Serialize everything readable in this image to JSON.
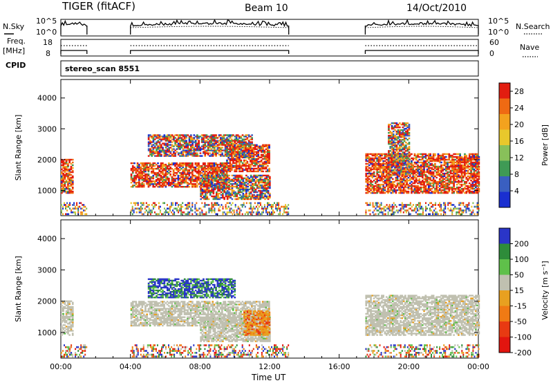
{
  "header": {
    "station": "TIGER (fitACF)",
    "beam": "Beam 10",
    "date": "14/Oct/2010"
  },
  "side_labels": {
    "nsky": "N.Sky",
    "nsearch": "N.Search",
    "freq": "Freq.",
    "freq_unit": "[MHz]",
    "nave": "Nave",
    "cpid": "CPID",
    "cpid_value": "stereo_scan 8551"
  },
  "axis_text": {
    "nsky_ticks": [
      "10^5",
      "10^0"
    ],
    "nsearch_ticks": [
      "10^5",
      "10^0"
    ],
    "freq_ticks": [
      "18",
      "8"
    ],
    "nave_ticks": [
      "60",
      "0"
    ]
  },
  "colors": {
    "power_scale": [
      "#1a2fd0",
      "#3a5fc0",
      "#3f9a55",
      "#88c05a",
      "#e8c82c",
      "#f3a21e",
      "#ef6a13",
      "#e21d10"
    ],
    "velocity_scale": [
      "#2a35c8",
      "#2e8c3a",
      "#5fc04a",
      "#c0c0b0",
      "#e8a020",
      "#f07a14",
      "#e83a12",
      "#e2150f"
    ]
  },
  "chart_data": [
    {
      "type": "heatmap",
      "panel": "power",
      "x_values": [
        "00:00",
        "04:00",
        "08:00",
        "12:00",
        "16:00",
        "20:00",
        "00:00"
      ],
      "xlim": [
        "00:00",
        "24:00"
      ],
      "ylabel": "Slant Range [km]",
      "yticks": [
        1000,
        2000,
        3000,
        4000
      ],
      "ylim": [
        180,
        4600
      ],
      "colorbar_label": "Power [dB]",
      "colorbar_ticks": [
        4,
        8,
        12,
        16,
        20,
        24,
        28
      ],
      "colorbar_range": [
        0,
        30
      ],
      "echo_regions": [
        {
          "t0": 0.0,
          "t1": 0.7,
          "r0": 900,
          "r1": 2000,
          "level": "high"
        },
        {
          "t0": 4.0,
          "t1": 9.5,
          "r0": 1100,
          "r1": 1900,
          "level": "high"
        },
        {
          "t0": 9.5,
          "t1": 12.0,
          "r0": 1600,
          "r1": 2500,
          "level": "high"
        },
        {
          "t0": 8.0,
          "t1": 12.0,
          "r0": 700,
          "r1": 1500,
          "level": "mid"
        },
        {
          "t0": 5.0,
          "t1": 11.0,
          "r0": 2100,
          "r1": 2800,
          "level": "mid"
        },
        {
          "t0": 17.5,
          "t1": 24.0,
          "r0": 900,
          "r1": 2200,
          "level": "high"
        },
        {
          "t0": 18.8,
          "t1": 20.0,
          "r0": 1500,
          "r1": 3200,
          "level": "mid"
        }
      ]
    },
    {
      "type": "heatmap",
      "panel": "velocity",
      "x_values": [
        "00:00",
        "04:00",
        "08:00",
        "12:00",
        "16:00",
        "20:00",
        "00:00"
      ],
      "xlim": [
        "00:00",
        "24:00"
      ],
      "xlabel": "Time UT",
      "ylabel": "Slant Range [km]",
      "yticks": [
        1000,
        2000,
        3000,
        4000
      ],
      "ylim": [
        180,
        4600
      ],
      "colorbar_label": "Velocity [m s⁻¹]",
      "colorbar_ticks": [
        200,
        100,
        50,
        15,
        -15,
        -50,
        -100,
        -200
      ],
      "colorbar_range": [
        -250,
        250
      ],
      "echo_regions": [
        {
          "t0": 0.0,
          "t1": 0.7,
          "r0": 900,
          "r1": 2000,
          "level": "ground"
        },
        {
          "t0": 4.0,
          "t1": 12.0,
          "r0": 1200,
          "r1": 2000,
          "level": "ground"
        },
        {
          "t0": 8.0,
          "t1": 12.0,
          "r0": 700,
          "r1": 1500,
          "level": "ground"
        },
        {
          "t0": 10.5,
          "t1": 12.0,
          "r0": 900,
          "r1": 1700,
          "level": "away"
        },
        {
          "t0": 5.0,
          "t1": 10.0,
          "r0": 2100,
          "r1": 2700,
          "level": "toward"
        },
        {
          "t0": 17.5,
          "t1": 24.0,
          "r0": 900,
          "r1": 2200,
          "level": "ground"
        }
      ]
    }
  ]
}
